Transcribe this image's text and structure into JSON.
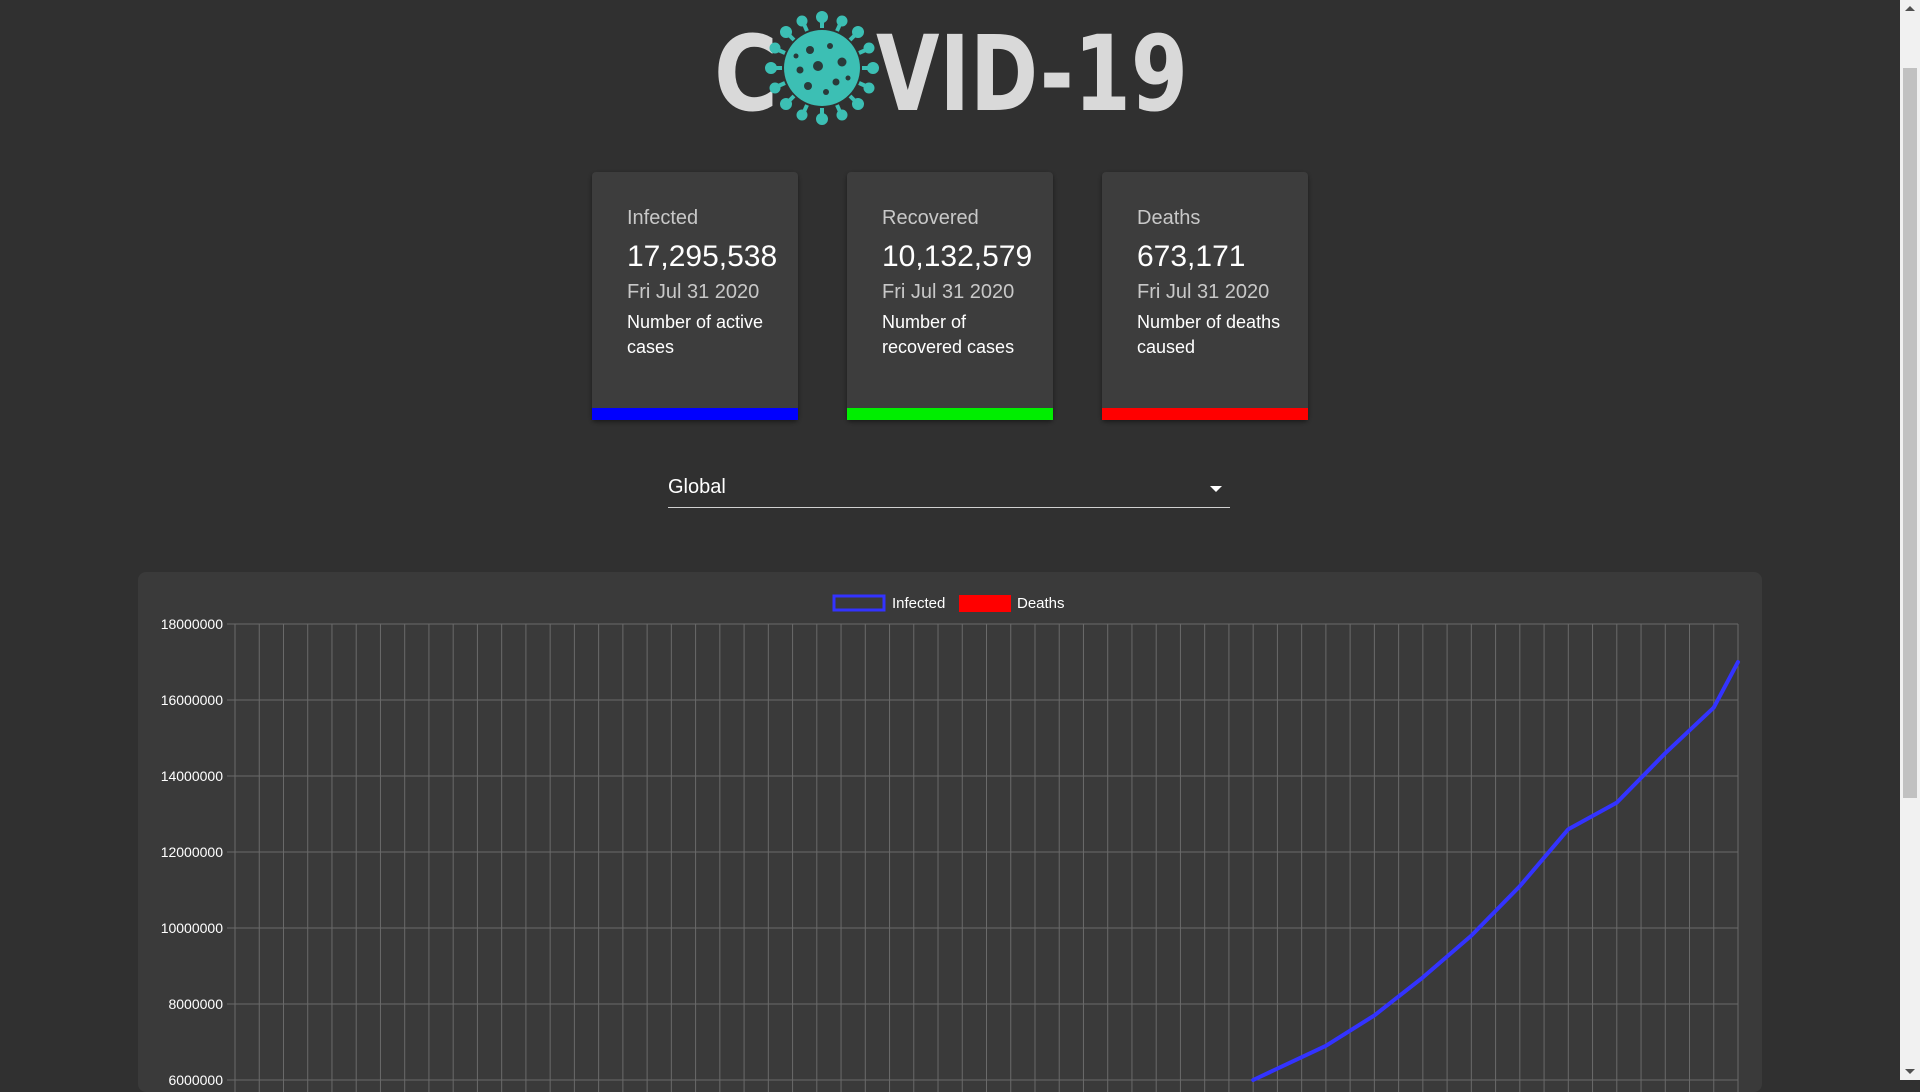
{
  "logo": {
    "text_before": "C",
    "text_after": "VID-19",
    "icon": "virus-icon",
    "text_color": "#d9d9d9",
    "icon_color": "#3cbfb4"
  },
  "cards": [
    {
      "title": "Infected",
      "value": "17,295,538",
      "date": "Fri Jul 31 2020",
      "description": "Number of active cases",
      "bar_color": "#0000ff"
    },
    {
      "title": "Recovered",
      "value": "10,132,579",
      "date": "Fri Jul 31 2020",
      "description": "Number of recovered cases",
      "bar_color": "#00ee00"
    },
    {
      "title": "Deaths",
      "value": "673,171",
      "date": "Fri Jul 31 2020",
      "description": "Number of deaths caused",
      "bar_color": "#ff0000"
    }
  ],
  "country_select": {
    "selected": "Global",
    "icon": "chevron-down-icon"
  },
  "chart_data": {
    "type": "line",
    "legend": [
      {
        "name": "Infected",
        "color": "#3333ff",
        "style": "outline"
      },
      {
        "name": "Deaths",
        "color": "#ff0000",
        "style": "filled"
      }
    ],
    "legend_position": "top-center",
    "grid": true,
    "y_ticks": [
      "18000000",
      "16000000",
      "14000000",
      "12000000",
      "10000000",
      "8000000",
      "6000000"
    ],
    "ylim": [
      6000000,
      18000000
    ],
    "x_count": 63,
    "series": [
      {
        "name": "Infected",
        "color": "#3333ff",
        "x": [
          42,
          45,
          47,
          49,
          51,
          53,
          55,
          57,
          59,
          61,
          62
        ],
        "values": [
          6000000,
          6900000,
          7700000,
          8700000,
          9800000,
          11100000,
          12600000,
          13300000,
          14600000,
          15800000,
          17000000
        ]
      }
    ]
  }
}
